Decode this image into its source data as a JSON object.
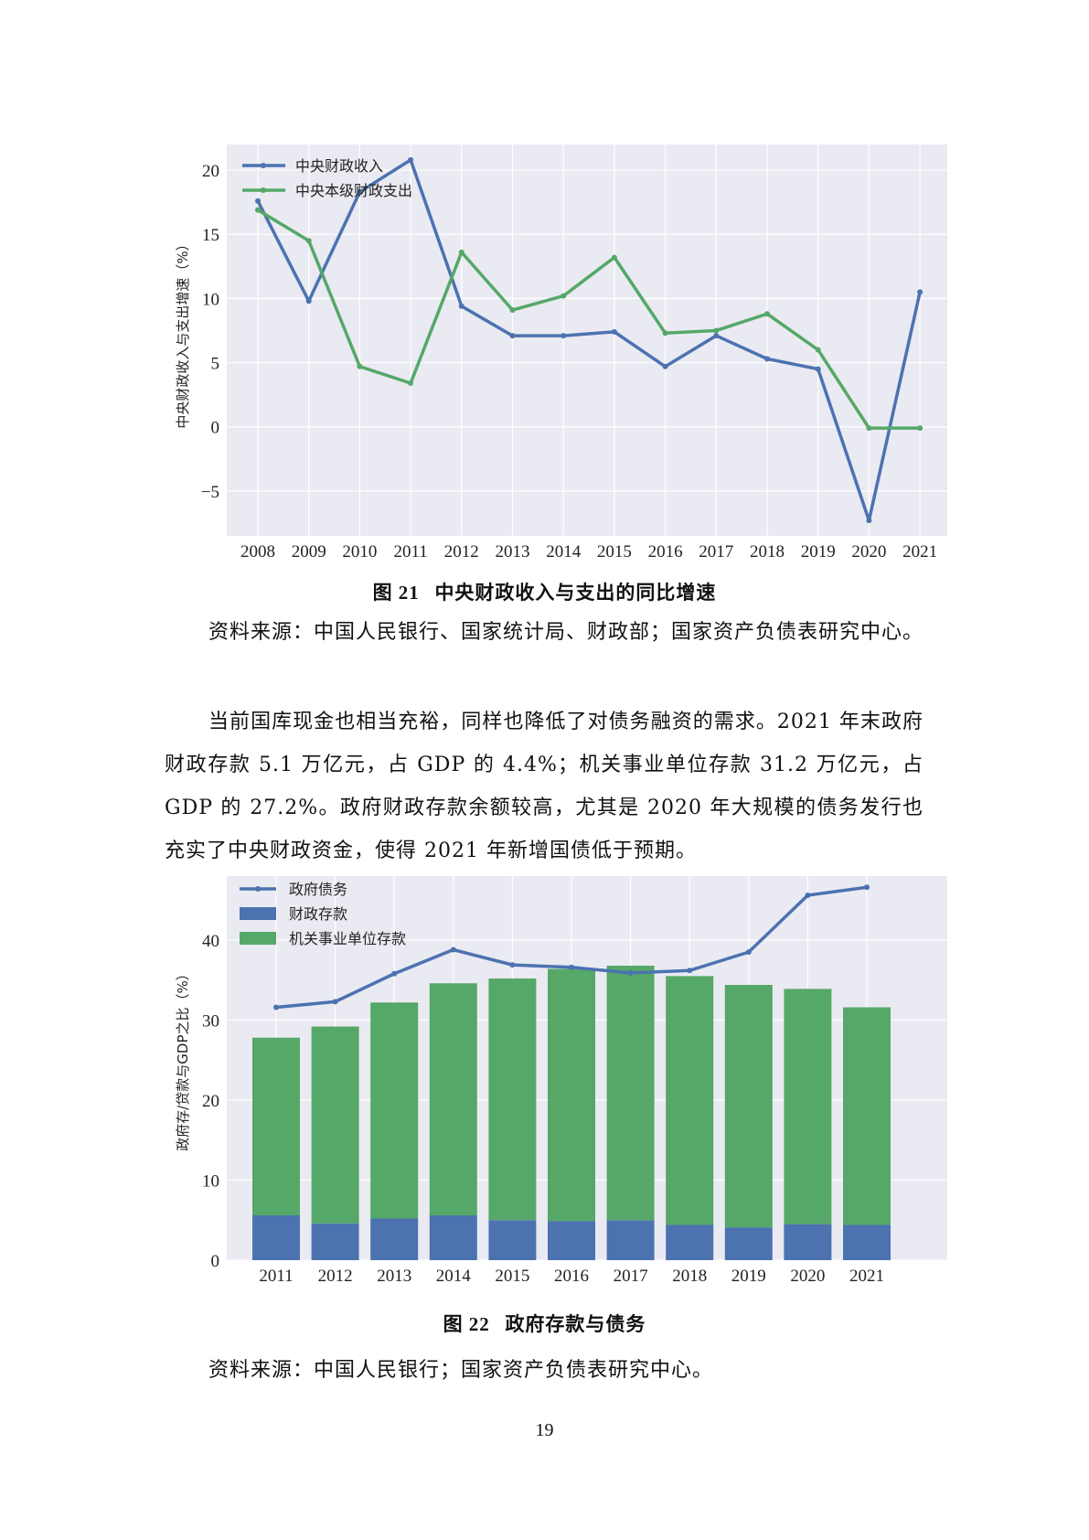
{
  "figure21": {
    "caption_num": "图 21",
    "caption_text": "中央财政收入与支出的同比增速",
    "source": "资料来源：中国人民银行、国家统计局、财政部；国家资产负债表研究中心。"
  },
  "paragraph": "当前国库现金也相当充裕，同样也降低了对债务融资的需求。2021 年末政府财政存款 5.1 万亿元，占 GDP 的 4.4%；机关事业单位存款 31.2 万亿元，占 GDP 的 27.2%。政府财政存款余额较高，尤其是 2020 年大规模的债务发行也充实了中央财政资金，使得 2021 年新增国债低于预期。",
  "figure22": {
    "caption_num": "图 22",
    "caption_text": "政府存款与债务",
    "source": "资料来源：中国人民银行；国家资产负债表研究中心。"
  },
  "page_number": "19",
  "colors": {
    "blue": "#4C72B0",
    "green": "#55A868",
    "plot_bg": "#EAEAF2",
    "grid": "#FFFFFF"
  },
  "chart_data": [
    {
      "type": "line",
      "title": "",
      "xlabel": "",
      "ylabel": "中央财政收入与支出增速（%）",
      "categories": [
        "2008",
        "2009",
        "2010",
        "2011",
        "2012",
        "2013",
        "2014",
        "2015",
        "2016",
        "2017",
        "2018",
        "2019",
        "2020",
        "2021"
      ],
      "ylim": [
        -8.5,
        22
      ],
      "yticks": [
        -5,
        0,
        5,
        10,
        15,
        20
      ],
      "ytick_labels": [
        "−5",
        "0",
        "5",
        "10",
        "15",
        "20"
      ],
      "grid": true,
      "legend": "top-left",
      "series": [
        {
          "name": "中央财政收入",
          "color": "#4C72B0",
          "values": [
            17.6,
            9.8,
            18.3,
            20.8,
            9.4,
            7.1,
            7.1,
            7.4,
            4.7,
            7.1,
            5.3,
            4.5,
            -7.3,
            10.5
          ]
        },
        {
          "name": "中央本级财政支出",
          "color": "#55A868",
          "values": [
            16.9,
            14.5,
            4.7,
            3.4,
            13.6,
            9.1,
            10.2,
            13.2,
            7.3,
            7.5,
            8.8,
            6.0,
            -0.1,
            -0.1
          ]
        }
      ]
    },
    {
      "type": "bar",
      "title": "",
      "xlabel": "",
      "ylabel": "政府存/贷款与GDP之比（%）",
      "categories": [
        "2011",
        "2012",
        "2013",
        "2014",
        "2015",
        "2016",
        "2017",
        "2018",
        "2019",
        "2020",
        "2021"
      ],
      "ylim": [
        0,
        48
      ],
      "yticks": [
        0,
        10,
        20,
        30,
        40
      ],
      "grid": true,
      "legend": "top-left",
      "series": [
        {
          "name": "政府债务",
          "kind": "line",
          "color": "#4C72B0",
          "values": [
            31.6,
            32.3,
            35.8,
            38.8,
            36.9,
            36.6,
            35.9,
            36.2,
            38.5,
            45.6,
            46.6
          ]
        },
        {
          "name": "财政存款",
          "kind": "bar",
          "color": "#4C72B0",
          "values": [
            5.6,
            4.6,
            5.2,
            5.6,
            5.0,
            4.9,
            5.0,
            4.4,
            4.1,
            4.5,
            4.4
          ]
        },
        {
          "name": "机关事业单位存款",
          "kind": "bar",
          "stacked_on": "财政存款",
          "color": "#55A868",
          "values": [
            22.2,
            24.6,
            27.0,
            29.0,
            30.2,
            31.5,
            31.8,
            31.1,
            30.3,
            29.4,
            27.2
          ]
        }
      ]
    }
  ]
}
